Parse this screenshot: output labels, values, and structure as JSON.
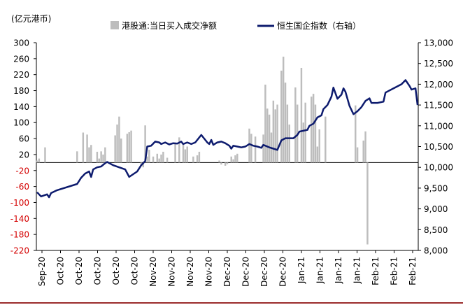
{
  "chart_data": {
    "type": "bar",
    "title": "",
    "left_axis_unit": "(亿元港币)",
    "xlabel": "",
    "ylabel": "",
    "ylim": [
      -220,
      300
    ],
    "y_ticks": [
      300,
      260,
      220,
      180,
      140,
      100,
      60,
      20,
      -20,
      -60,
      -100,
      -140,
      -180,
      -220
    ],
    "y2lim": [
      8000,
      13000
    ],
    "y2_ticks": [
      13000,
      12500,
      12000,
      11500,
      11000,
      10500,
      10000,
      9500,
      9000,
      8500,
      8000
    ],
    "y2_tick_labels": [
      "13,000",
      "12,500",
      "12,000",
      "11,500",
      "11,000",
      "10,500",
      "10,000",
      "9,500",
      "9,000",
      "8,500",
      "8,000"
    ],
    "x_tick_labels": [
      "Sep-20",
      "Oct-20",
      "Oct-20",
      "Oct-20",
      "Oct-20",
      "Oct-20",
      "Nov-20",
      "Nov-20",
      "Nov-20",
      "Nov-20",
      "Dec-20",
      "Dec-20",
      "Dec-20",
      "Dec-20",
      "Jan-21",
      "Jan-21",
      "Jan-21",
      "Jan-21",
      "Feb-21",
      "Feb-21",
      "Feb-21"
    ],
    "legend": {
      "position": "top",
      "entries": [
        "港股通:当日买入成交净额",
        "恒生国企指数（右轴）"
      ]
    },
    "bar_color": "#bdbdbd",
    "line_color": "#0d1b6e",
    "negative_label_color": "#d40000",
    "series": [
      {
        "name": "港股通:当日买入成交净额",
        "type": "bar",
        "axis": "left",
        "values": [
          5,
          10,
          0,
          0,
          38,
          0,
          0,
          0,
          0,
          0,
          0,
          0,
          0,
          0,
          0,
          0,
          0,
          0,
          0,
          0,
          28,
          0,
          0,
          75,
          0,
          70,
          38,
          44,
          0,
          0,
          27,
          10,
          28,
          20,
          38,
          0,
          0,
          0,
          0,
          68,
          95,
          115,
          60,
          0,
          0,
          72,
          76,
          80,
          0,
          0,
          0,
          0,
          -5,
          -12,
          93,
          15,
          32,
          0,
          15,
          0,
          22,
          10,
          20,
          27,
          0,
          12,
          0,
          0,
          0,
          50,
          0,
          63,
          0,
          48,
          33,
          40,
          0,
          0,
          15,
          0,
          18,
          27,
          0,
          0,
          0,
          0,
          0,
          0,
          0,
          0,
          0,
          5,
          -5,
          0,
          -8,
          -4,
          0,
          15,
          8,
          18,
          22,
          0,
          0,
          0,
          0,
          0,
          85,
          72,
          0,
          65,
          0,
          0,
          0,
          70,
          195,
          135,
          120,
          75,
          155,
          133,
          145,
          0,
          230,
          265,
          200,
          145,
          95,
          0,
          0,
          188,
          145,
          0,
          237,
          100,
          150,
          0,
          0,
          165,
          172,
          145,
          40,
          83,
          0,
          0,
          115,
          0,
          0,
          0,
          0,
          0,
          0,
          0,
          0,
          0,
          0,
          0,
          0,
          0,
          0,
          143,
          38,
          0,
          0,
          55,
          78,
          -205
        ]
      },
      {
        "name": "恒生国企指数（右轴）",
        "type": "line",
        "axis": "right",
        "points": [
          [
            0,
            9400
          ],
          [
            2,
            9300
          ],
          [
            5,
            9350
          ],
          [
            6,
            9280
          ],
          [
            7,
            9380
          ],
          [
            10,
            9450
          ],
          [
            20,
            9600
          ],
          [
            22,
            9750
          ],
          [
            24,
            9850
          ],
          [
            26,
            9900
          ],
          [
            27,
            9770
          ],
          [
            28,
            9950
          ],
          [
            30,
            10000
          ],
          [
            32,
            10020
          ],
          [
            34,
            10100
          ],
          [
            35,
            10130
          ],
          [
            38,
            10050
          ],
          [
            44,
            9950
          ],
          [
            46,
            9770
          ],
          [
            50,
            9900
          ],
          [
            52,
            10050
          ],
          [
            54,
            10150
          ],
          [
            55,
            10500
          ],
          [
            57,
            10520
          ],
          [
            59,
            10620
          ],
          [
            61,
            10600
          ],
          [
            62,
            10560
          ],
          [
            64,
            10600
          ],
          [
            66,
            10550
          ],
          [
            68,
            10580
          ],
          [
            70,
            10570
          ],
          [
            72,
            10620
          ],
          [
            73,
            10560
          ],
          [
            75,
            10600
          ],
          [
            77,
            10560
          ],
          [
            79,
            10600
          ],
          [
            82,
            10780
          ],
          [
            85,
            10600
          ],
          [
            86,
            10560
          ],
          [
            87,
            10660
          ],
          [
            88,
            10540
          ],
          [
            90,
            10600
          ],
          [
            92,
            10620
          ],
          [
            94,
            10580
          ],
          [
            96,
            10520
          ],
          [
            97,
            10450
          ],
          [
            98,
            10520
          ],
          [
            100,
            10500
          ],
          [
            102,
            10480
          ],
          [
            104,
            10500
          ],
          [
            106,
            10560
          ],
          [
            108,
            10520
          ],
          [
            110,
            10500
          ],
          [
            112,
            10470
          ],
          [
            113,
            10540
          ],
          [
            116,
            10480
          ],
          [
            118,
            10450
          ],
          [
            120,
            10420
          ],
          [
            122,
            10650
          ],
          [
            124,
            10700
          ],
          [
            128,
            10700
          ],
          [
            130,
            10780
          ],
          [
            131,
            10860
          ],
          [
            133,
            10880
          ],
          [
            135,
            10900
          ],
          [
            136,
            11000
          ],
          [
            138,
            11050
          ],
          [
            140,
            11200
          ],
          [
            142,
            11250
          ],
          [
            143,
            11400
          ],
          [
            145,
            11500
          ],
          [
            147,
            11700
          ],
          [
            148,
            11920
          ],
          [
            150,
            11650
          ],
          [
            152,
            11750
          ],
          [
            153,
            11900
          ],
          [
            154,
            11820
          ],
          [
            156,
            11480
          ],
          [
            158,
            11280
          ],
          [
            160,
            11350
          ],
          [
            162,
            11450
          ],
          [
            164,
            11600
          ],
          [
            166,
            11660
          ],
          [
            167,
            11550
          ],
          [
            170,
            11550
          ],
          [
            173,
            11580
          ],
          [
            174,
            11800
          ],
          [
            176,
            11850
          ],
          [
            182,
            12000
          ],
          [
            184,
            12100
          ],
          [
            186,
            11960
          ],
          [
            187,
            11870
          ],
          [
            189,
            11900
          ],
          [
            190,
            11500
          ]
        ]
      }
    ],
    "x_index_max": 190
  }
}
